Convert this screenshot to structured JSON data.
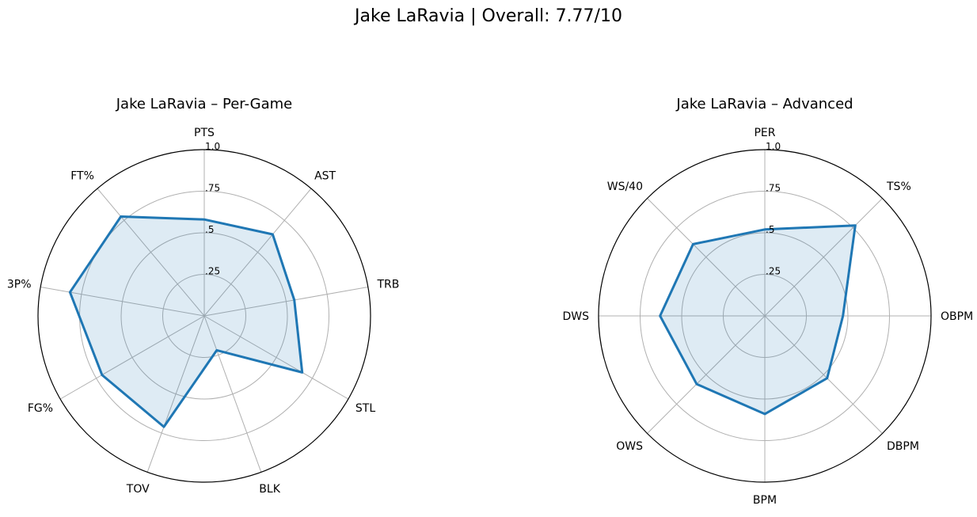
{
  "figure_title": "Jake LaRavia | Overall: 7.77/10",
  "colors": {
    "line": "#1f77b4",
    "fill": "#1f77b4",
    "grid": "#b0b0b0",
    "outline": "#000000"
  },
  "chart_data": [
    {
      "type": "radar",
      "title": "Jake LaRavia – Per-Game",
      "categories": [
        "PTS",
        "AST",
        "TRB",
        "STL",
        "BLK",
        "TOV",
        "FG%",
        "3P%",
        "FT%"
      ],
      "values": [
        0.58,
        0.64,
        0.55,
        0.68,
        0.22,
        0.71,
        0.71,
        0.82,
        0.78
      ],
      "rlim": [
        0,
        1
      ],
      "rticks": [
        0.25,
        0.5,
        0.75,
        1.0
      ],
      "rtick_labels": [
        ".25",
        ".5",
        ".75",
        "1.0"
      ],
      "grid": true
    },
    {
      "type": "radar",
      "title": "Jake LaRavia – Advanced",
      "categories": [
        "PER",
        "TS%",
        "OBPM",
        "DBPM",
        "BPM",
        "OWS",
        "DWS",
        "WS/40"
      ],
      "values": [
        0.52,
        0.77,
        0.47,
        0.53,
        0.59,
        0.58,
        0.63,
        0.61
      ],
      "rlim": [
        0,
        1
      ],
      "rticks": [
        0.25,
        0.5,
        0.75,
        1.0
      ],
      "rtick_labels": [
        ".25",
        ".5",
        ".75",
        "1.0"
      ],
      "grid": true
    }
  ]
}
